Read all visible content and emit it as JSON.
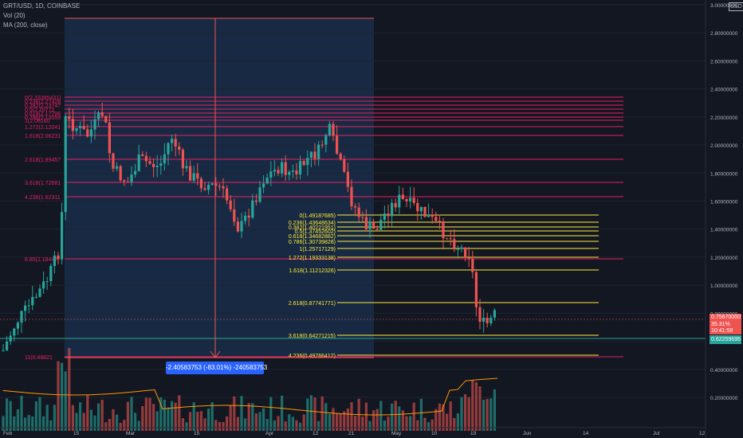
{
  "header": {
    "symbol_line": "GRT/USD, 1D, COINBASE",
    "vol_line": "Vol (20)",
    "ma_line": "MA (200, close)",
    "currency_badge": "USD"
  },
  "price_tag": {
    "price": "0.75670000",
    "change": "35.31%",
    "countdown": "10:41:58"
  },
  "ma_tag": {
    "value": "0.62259695"
  },
  "measure_label": "-2.40583753 (-83.01%) -240583753",
  "colors": {
    "background": "#131722",
    "up": "#26a69a",
    "down": "#ef5350",
    "fib_pink": "#e91e63",
    "fib_yellow": "#ffeb3b",
    "range_box": "#1e3a5f",
    "measure": "#2962ff",
    "ma_line": "#ff9800"
  },
  "chart_data": {
    "type": "candlestick",
    "y_axis": {
      "min": 0.0,
      "max": 3.0,
      "ticks": [
        "0.20000000",
        "0.40000000",
        "0.60000000",
        "0.80000000",
        "1.00000000",
        "1.20000000",
        "1.40000000",
        "1.60000000",
        "1.80000000",
        "2.00000000",
        "2.20000000",
        "2.40000000",
        "2.60000000",
        "2.80000000",
        "3.00000000"
      ]
    },
    "x_axis": {
      "ticks": [
        "Feb",
        "15",
        "Mar",
        "15",
        "Apr",
        "12",
        "21",
        "May",
        "10",
        "19",
        "Jun",
        "14",
        "Jul",
        "12"
      ]
    },
    "fib_set_1": [
      {
        "label": "0(2.33385431)"
      },
      {
        "label": "0.236(2.27428"
      },
      {
        "label": "0.382(2.23747"
      },
      {
        "label": "0.5(2.20772"
      },
      {
        "label": "0.618(2.17796"
      },
      {
        "label": "0.786(2.13559"
      },
      {
        "label": "1(2.08160"
      },
      {
        "label": "1.272(2.12041"
      },
      {
        "label": "1.618(2.06231"
      },
      {
        "label": "2.618(1.89457"
      },
      {
        "label": "3.618(1.72681"
      },
      {
        "label": "4.236(1.62311"
      },
      {
        "label": "6.85(1.18447"
      },
      {
        "label": "11(0.48821"
      }
    ],
    "fib_set_2": [
      {
        "label": "0(1.49187685)"
      },
      {
        "label": "0.236(1.43648634)"
      },
      {
        "label": "0.382(1.40221951)"
      },
      {
        "label": "0.5(1.37452602)"
      },
      {
        "label": "0.618(1.34682882)"
      },
      {
        "label": "0.786(1.30739828)"
      },
      {
        "label": "1(1.25717129)"
      },
      {
        "label": "1.272(1.19333138)"
      },
      {
        "label": "1.618(1.11212326)"
      },
      {
        "label": "2.618(0.87741771)"
      },
      {
        "label": "3.618(0.64271215)"
      },
      {
        "label": "4.236(0.49766412)"
      }
    ]
  }
}
